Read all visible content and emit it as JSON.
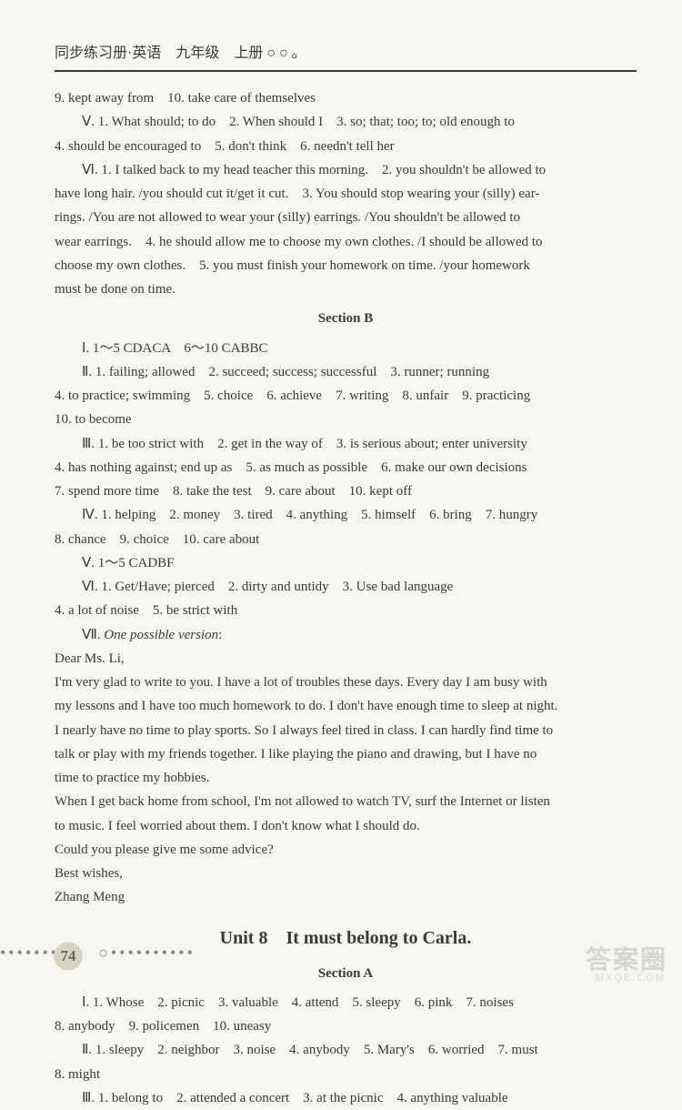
{
  "header": {
    "title": "同步练习册·英语　九年级　上册 ○ ○ 。"
  },
  "lines": {
    "l1": "9. kept away from　10. take care of themselves",
    "l2": "Ⅴ. 1. What should; to do　2. When should I　3. so; that; too; to; old enough to",
    "l3": "4. should be encouraged to　5. don't think　6. needn't tell her",
    "l4": "Ⅵ. 1. I talked back to my head teacher this morning.　2. you shouldn't be allowed to",
    "l5": "have long hair. /you should cut it/get it cut.　3. You should stop wearing your (silly) ear-",
    "l6": "rings. /You are not allowed to wear your (silly) earrings. /You shouldn't be allowed to",
    "l7": "wear earrings.　4. he should allow me to choose my own clothes. /I should be allowed to",
    "l8": "choose my own clothes.　5. you must finish your homework on time. /your homework",
    "l9": "must be done on time.",
    "secB": "Section B",
    "l10": "Ⅰ. 1～5 CDACA　6～10 CABBC",
    "l11": "Ⅱ. 1. failing; allowed　2. succeed; success; successful　3. runner; running",
    "l12": "4. to practice; swimming　5. choice　6. achieve　7. writing　8. unfair　9. practicing",
    "l13": "10. to become",
    "l14": "Ⅲ. 1. be too strict with　2. get in the way of　3. is serious about; enter university",
    "l15": "4. has nothing against; end up as　5. as much as possible　6. make our own decisions",
    "l16": "7. spend more time　8. take the test　9. care about　10. kept off",
    "l17": "Ⅳ. 1. helping　2. money　3. tired　4. anything　5. himself　6. bring　7. hungry",
    "l18": "8. chance　9. choice　10. care about",
    "l19": "Ⅴ. 1～5 CADBF",
    "l20": "Ⅵ. 1. Get/Have; pierced　2. dirty and untidy　3. Use bad language",
    "l21": "4. a lot of noise　5. be strict with",
    "l22a": "Ⅶ. ",
    "l22b": "One possible version",
    "l22c": ":",
    "l23": "Dear Ms. Li,",
    "l24": "I'm very glad to write to you. I have a lot of troubles these days. Every day I am busy with",
    "l25": "my lessons and I have too much homework to do. I don't have enough time to sleep at night.",
    "l26": "I nearly have no time to play sports. So I always feel tired in class. I can hardly find time to",
    "l27": "talk or play with my friends together. I like playing the piano and drawing, but I have no",
    "l28": "time to practice my hobbies.",
    "l29": "When I get back home from school, I'm not allowed to watch TV, surf the Internet or listen",
    "l30": "to music. I feel worried about them. I don't know what I should do.",
    "l31": "Could you please give me some advice?",
    "l32": "Best wishes,",
    "l33": "Zhang Meng",
    "unit8": "Unit 8　It must belong to Carla.",
    "secA": "Section A",
    "l34": "Ⅰ. 1. Whose　2. picnic　3. valuable　4. attend　5. sleepy　6. pink　7. noises",
    "l35": "8. anybody　9. policemen　10. uneasy",
    "l36": "Ⅱ. 1. sleepy　2. neighbor　3. noise　4. anybody　5. Mary's　6. worried　7. must",
    "l37": "8. might",
    "l38": "Ⅲ. 1. belong to　2. attended a concert　3. at the picnic　4. anything valuable"
  },
  "pageNumber": "74",
  "watermark": {
    "main": "答案圈",
    "sub": "MXQE.COM"
  }
}
